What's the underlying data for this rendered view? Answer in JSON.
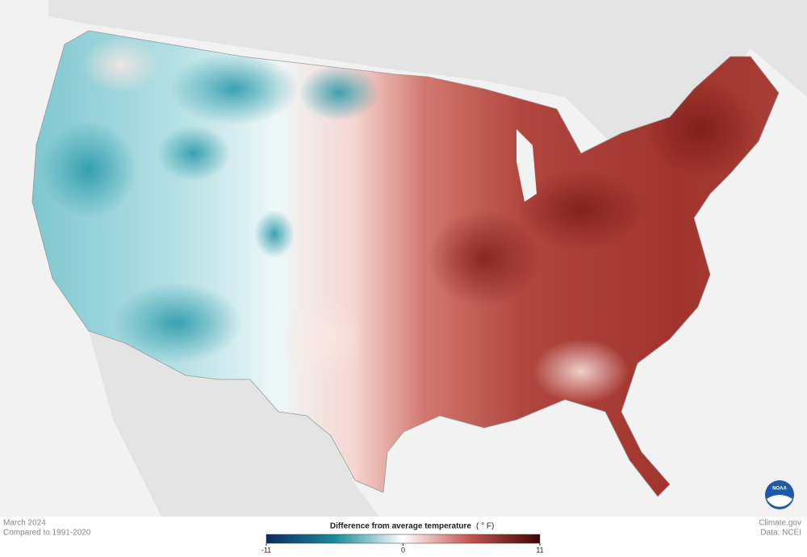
{
  "footer": {
    "date": "March 2024",
    "baseline": "Compared to 1991-2020",
    "source": "Climate.gov",
    "data_credit": "Data: NCEI"
  },
  "legend": {
    "title": "Difference from average temperature",
    "unit": "( ° F)",
    "range": [
      -11,
      11
    ],
    "ticks": [
      -11,
      0,
      11
    ]
  },
  "logo": "NOAA"
}
